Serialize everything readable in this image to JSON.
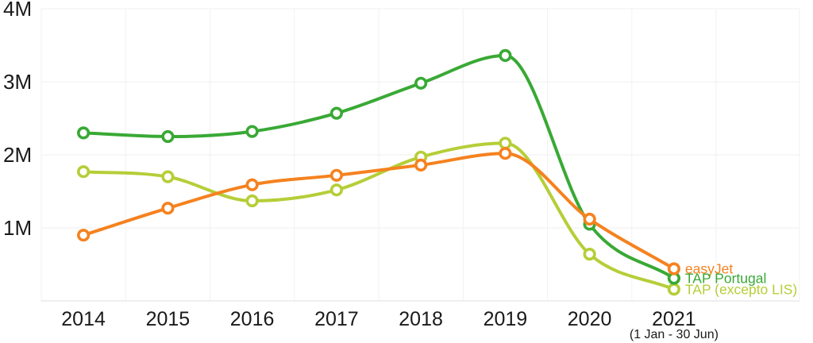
{
  "chart_data": {
    "type": "line",
    "title": "",
    "categories": [
      "2014",
      "2015",
      "2016",
      "2017",
      "2018",
      "2019",
      "2020",
      "2021"
    ],
    "x_axis_note": {
      "category": "2021",
      "text": "(1 Jan - 30 Jun)"
    },
    "y_ticks": [
      {
        "label": "1M",
        "value": 1
      },
      {
        "label": "2M",
        "value": 2
      },
      {
        "label": "3M",
        "value": 3
      },
      {
        "label": "4M",
        "value": 4
      }
    ],
    "ylim": [
      0,
      4
    ],
    "grid": true,
    "legend_position": "right-of-last-point",
    "series": [
      {
        "name": "easyJet",
        "color": "#f5821f",
        "values": [
          0.9,
          1.27,
          1.59,
          1.72,
          1.86,
          2.02,
          1.12,
          0.44
        ]
      },
      {
        "name": "TAP Portugal",
        "color": "#39a935",
        "values": [
          2.3,
          2.25,
          2.32,
          2.57,
          2.98,
          3.36,
          1.05,
          0.31
        ]
      },
      {
        "name": "TAP (excepto LIS)",
        "color": "#b5ce38",
        "values": [
          1.77,
          1.7,
          1.37,
          1.52,
          1.97,
          2.16,
          0.64,
          0.16
        ]
      }
    ],
    "colors": {
      "grid_vertical": "#f2f2f2",
      "grid_horizontal": "#efefef",
      "axis_bottom": "#e5e5e5",
      "tick_text": "#1a1a1a"
    }
  }
}
